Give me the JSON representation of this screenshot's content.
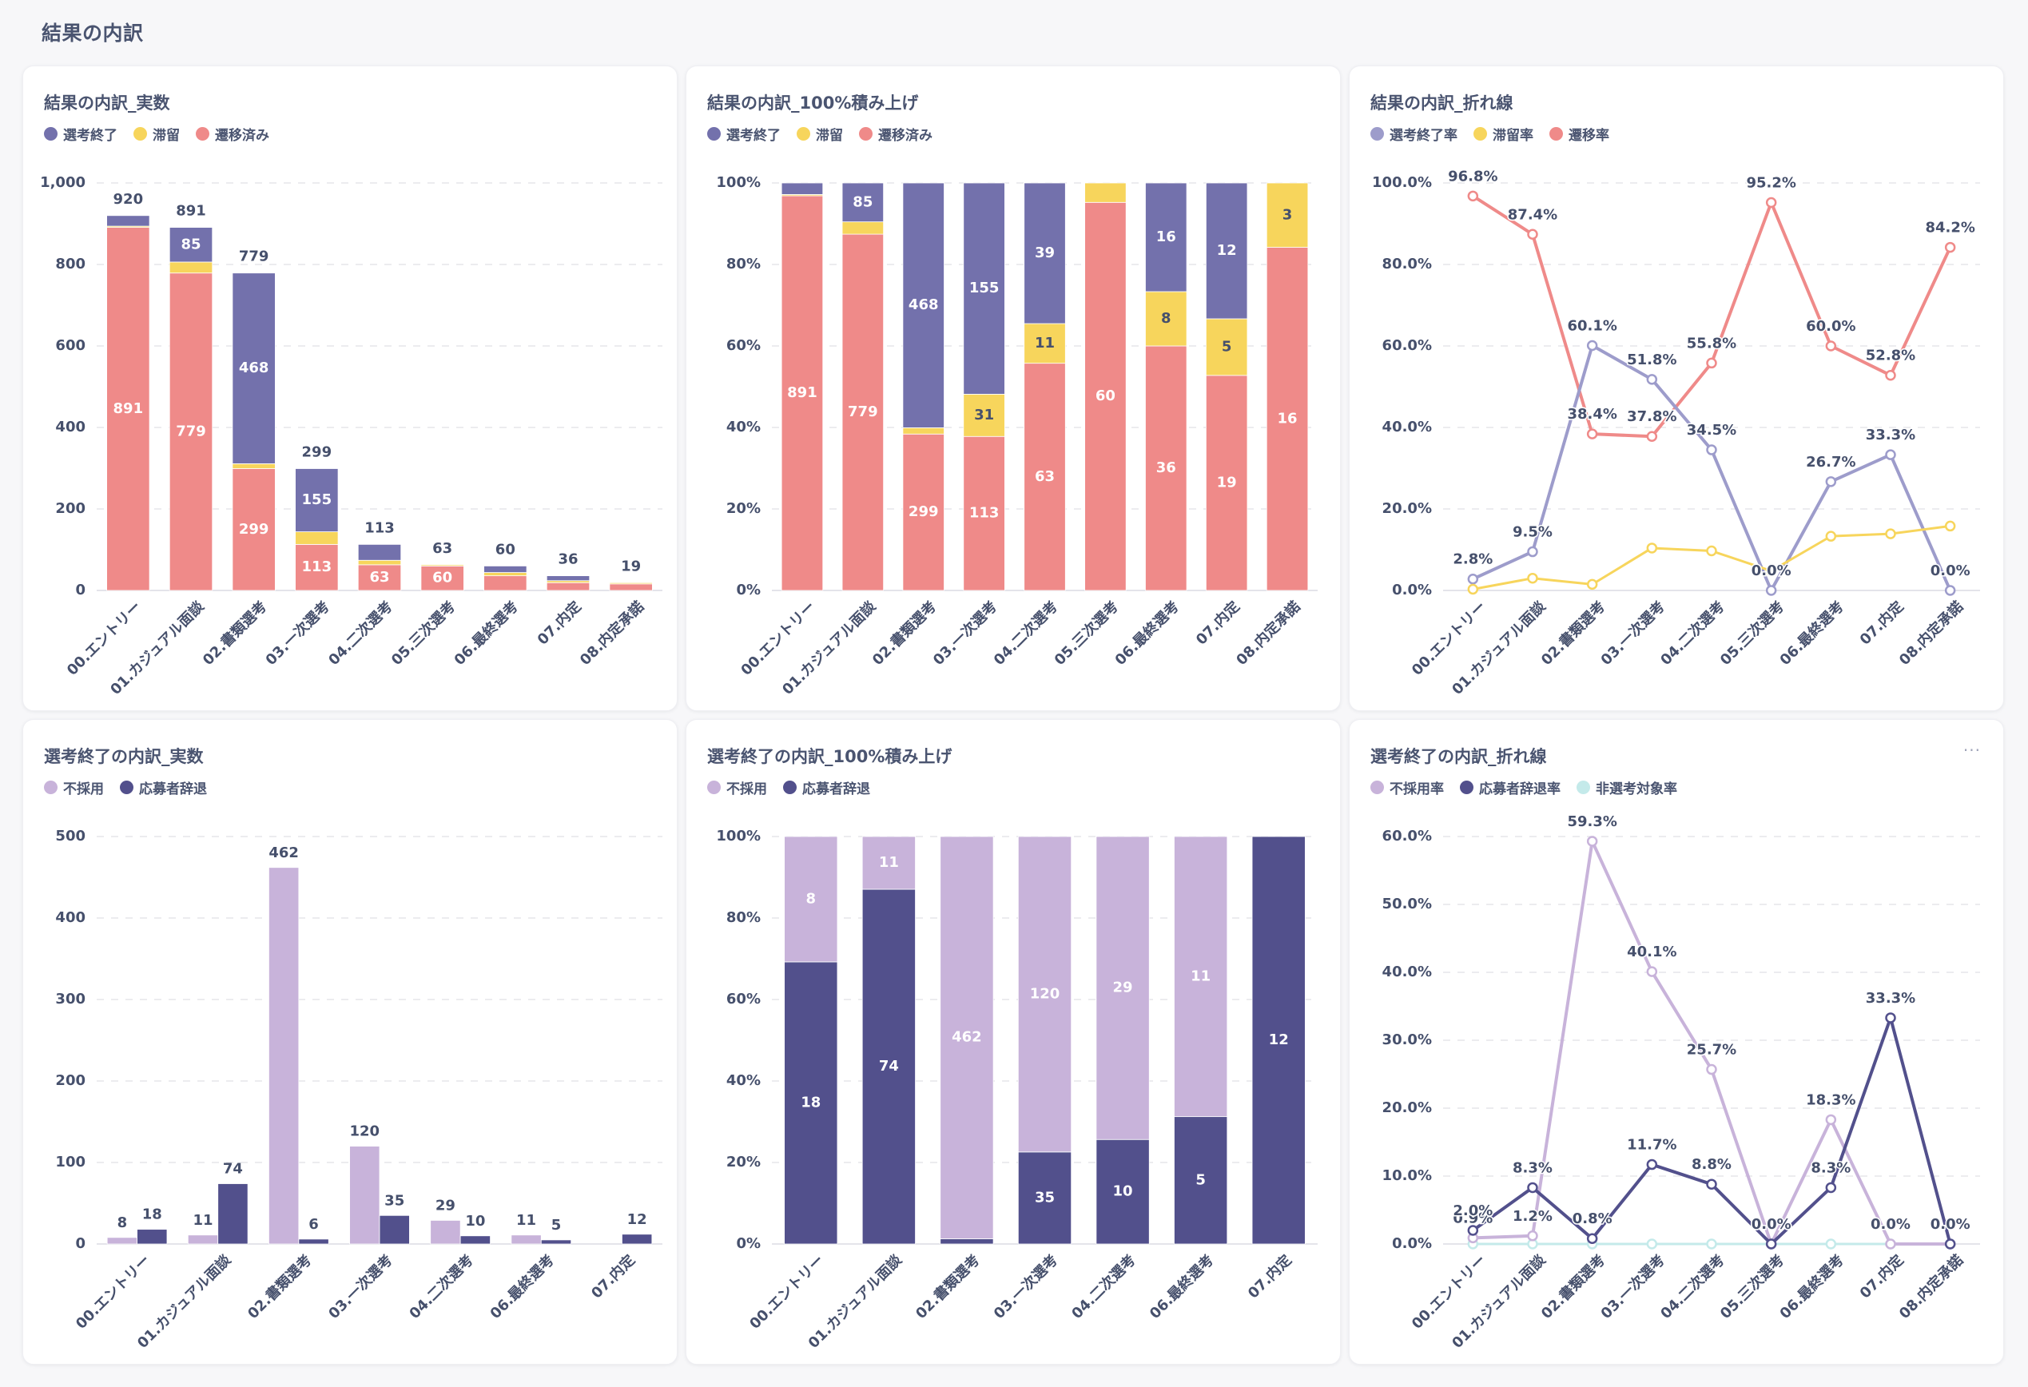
{
  "page": {
    "title": "結果の内訳"
  },
  "colors": {
    "finished": "#7371AC",
    "stagnant": "#F7D55C",
    "transferred": "#EF8A89",
    "finished_rate": "#9D9CCB",
    "rejected": "#C8B3DA",
    "withdrawn": "#52508C",
    "non_target": "#C4EAEA",
    "text": "#46506C",
    "grid": "#E6E6EA"
  },
  "cards": [
    {
      "title": "結果の内訳_実数",
      "legend": [
        {
          "label": "選考終了",
          "color": "#7371AC"
        },
        {
          "label": "滞留",
          "color": "#F7D55C"
        },
        {
          "label": "遷移済み",
          "color": "#EF8A89"
        }
      ]
    },
    {
      "title": "結果の内訳_100%積み上げ",
      "legend": [
        {
          "label": "選考終了",
          "color": "#7371AC"
        },
        {
          "label": "滞留",
          "color": "#F7D55C"
        },
        {
          "label": "遷移済み",
          "color": "#EF8A89"
        }
      ]
    },
    {
      "title": "結果の内訳_折れ線",
      "legend": [
        {
          "label": "選考終了率",
          "color": "#9D9CCB"
        },
        {
          "label": "滞留率",
          "color": "#F7D55C"
        },
        {
          "label": "遷移率",
          "color": "#EF8A89"
        }
      ]
    },
    {
      "title": "選考終了の内訳_実数",
      "legend": [
        {
          "label": "不採用",
          "color": "#C8B3DA"
        },
        {
          "label": "応募者辞退",
          "color": "#52508C"
        }
      ]
    },
    {
      "title": "選考終了の内訳_100%積み上げ",
      "legend": [
        {
          "label": "不採用",
          "color": "#C8B3DA"
        },
        {
          "label": "応募者辞退",
          "color": "#52508C"
        }
      ]
    },
    {
      "title": "選考終了の内訳_折れ線",
      "legend": [
        {
          "label": "不採用率",
          "color": "#C8B3DA"
        },
        {
          "label": "応募者辞退率",
          "color": "#52508C"
        },
        {
          "label": "非選考対象率",
          "color": "#C4EAEA"
        }
      ],
      "more_label": "···"
    }
  ],
  "chart_data": [
    {
      "id": "result-count",
      "type": "bar",
      "stacked": true,
      "title": "結果の内訳_実数",
      "categories": [
        "00.エントリー",
        "01.カジュアル面談",
        "02.書類選考",
        "03.一次選考",
        "04.二次選考",
        "05.三次選考",
        "06.最終選考",
        "07.内定",
        "08.内定承諾"
      ],
      "series": [
        {
          "name": "遷移済み",
          "color": "#EF8A89",
          "values": [
            891,
            779,
            299,
            113,
            63,
            60,
            36,
            19,
            16
          ]
        },
        {
          "name": "滞留",
          "color": "#F7D55C",
          "values": [
            3,
            27,
            12,
            31,
            11,
            3,
            8,
            5,
            3
          ]
        },
        {
          "name": "選考終了",
          "color": "#7371AC",
          "values": [
            26,
            85,
            468,
            155,
            39,
            0,
            16,
            12,
            0
          ]
        }
      ],
      "totals": [
        920,
        891,
        779,
        299,
        113,
        63,
        60,
        36,
        19
      ],
      "segment_labels_shown": {
        "遷移済み": [
          true,
          true,
          true,
          true,
          true,
          true,
          false,
          false,
          false
        ],
        "滞留": [
          false,
          false,
          false,
          false,
          false,
          false,
          false,
          false,
          false
        ],
        "選考終了": [
          false,
          true,
          true,
          true,
          false,
          false,
          false,
          false,
          false
        ]
      },
      "ylim": [
        0,
        1000
      ],
      "yticks": [
        0,
        200,
        400,
        600,
        800,
        1000
      ],
      "ytick_labels": [
        "0",
        "200",
        "400",
        "600",
        "800",
        "1,000"
      ],
      "grid": true,
      "legend": "top-left"
    },
    {
      "id": "result-100",
      "type": "bar",
      "stacked": true,
      "normalized": true,
      "title": "結果の内訳_100%積み上げ",
      "categories": [
        "00.エントリー",
        "01.カジュアル面談",
        "02.書類選考",
        "03.一次選考",
        "04.二次選考",
        "05.三次選考",
        "06.最終選考",
        "07.内定",
        "08.内定承諾"
      ],
      "series": [
        {
          "name": "遷移済み",
          "color": "#EF8A89",
          "values": [
            891,
            779,
            299,
            113,
            63,
            60,
            36,
            19,
            16
          ]
        },
        {
          "name": "滞留",
          "color": "#F7D55C",
          "values": [
            3,
            27,
            12,
            31,
            11,
            3,
            8,
            5,
            3
          ]
        },
        {
          "name": "選考終了",
          "color": "#7371AC",
          "values": [
            26,
            85,
            468,
            155,
            39,
            0,
            16,
            12,
            0
          ]
        }
      ],
      "segment_labels_shown": {
        "遷移済み": [
          true,
          true,
          true,
          true,
          true,
          true,
          true,
          true,
          true
        ],
        "滞留": [
          false,
          false,
          false,
          true,
          true,
          false,
          true,
          true,
          true
        ],
        "選考終了": [
          false,
          true,
          true,
          true,
          true,
          false,
          true,
          true,
          false
        ]
      },
      "ylim": [
        0,
        100
      ],
      "yticks": [
        0,
        20,
        40,
        60,
        80,
        100
      ],
      "ytick_labels": [
        "0%",
        "20%",
        "40%",
        "60%",
        "80%",
        "100%"
      ],
      "grid": true,
      "legend": "top-left"
    },
    {
      "id": "result-line",
      "type": "line",
      "title": "結果の内訳_折れ線",
      "categories": [
        "00.エントリー",
        "01.カジュアル面談",
        "02.書類選考",
        "03.一次選考",
        "04.二次選考",
        "05.三次選考",
        "06.最終選考",
        "07.内定",
        "08.内定承諾"
      ],
      "series": [
        {
          "name": "遷移率",
          "color": "#EF8A89",
          "values": [
            96.8,
            87.4,
            38.4,
            37.8,
            55.8,
            95.2,
            60.0,
            52.8,
            84.2
          ],
          "labels": [
            "96.8%",
            "87.4%",
            "38.4%",
            "37.8%",
            "55.8%",
            "95.2%",
            "60.0%",
            "52.8%",
            "84.2%"
          ]
        },
        {
          "name": "選考終了率",
          "color": "#9D9CCB",
          "values": [
            2.8,
            9.5,
            60.1,
            51.8,
            34.5,
            0.0,
            26.7,
            33.3,
            0.0
          ],
          "labels": [
            "2.8%",
            "9.5%",
            "60.1%",
            "51.8%",
            "34.5%",
            "0.0%",
            "26.7%",
            "33.3%",
            "0.0%"
          ]
        },
        {
          "name": "滞留率",
          "color": "#F7D55C",
          "values": [
            0.3,
            3.0,
            1.5,
            10.4,
            9.7,
            4.8,
            13.3,
            13.9,
            15.8
          ],
          "labels": null
        }
      ],
      "ylim": [
        0,
        100
      ],
      "yticks": [
        0,
        20,
        40,
        60,
        80,
        100
      ],
      "ytick_labels": [
        "0.0%",
        "20.0%",
        "40.0%",
        "60.0%",
        "80.0%",
        "100.0%"
      ],
      "grid": true,
      "legend": "top-left"
    },
    {
      "id": "finish-count",
      "type": "bar",
      "grouped": true,
      "title": "選考終了の内訳_実数",
      "categories": [
        "00.エントリー",
        "01.カジュアル面談",
        "02.書類選考",
        "03.一次選考",
        "04.二次選考",
        "06.最終選考",
        "07.内定"
      ],
      "series": [
        {
          "name": "不採用",
          "color": "#C8B3DA",
          "values": [
            8,
            11,
            462,
            120,
            29,
            11,
            0
          ],
          "labels_shown": [
            true,
            true,
            true,
            true,
            true,
            true,
            false
          ]
        },
        {
          "name": "応募者辞退",
          "color": "#52508C",
          "values": [
            18,
            74,
            6,
            35,
            10,
            5,
            12
          ],
          "labels_shown": [
            true,
            true,
            true,
            true,
            true,
            true,
            true
          ]
        }
      ],
      "ylim": [
        0,
        500
      ],
      "yticks": [
        0,
        100,
        200,
        300,
        400,
        500
      ],
      "ytick_labels": [
        "0",
        "100",
        "200",
        "300",
        "400",
        "500"
      ],
      "grid": true,
      "legend": "top-left"
    },
    {
      "id": "finish-100",
      "type": "bar",
      "stacked": true,
      "normalized": true,
      "title": "選考終了の内訳_100%積み上げ",
      "categories": [
        "00.エントリー",
        "01.カジュアル面談",
        "02.書類選考",
        "03.一次選考",
        "04.二次選考",
        "06.最終選考",
        "07.内定"
      ],
      "series": [
        {
          "name": "応募者辞退",
          "color": "#52508C",
          "values": [
            18,
            74,
            6,
            35,
            10,
            5,
            12
          ],
          "labels_shown": [
            true,
            true,
            false,
            true,
            true,
            true,
            true
          ]
        },
        {
          "name": "不採用",
          "color": "#C8B3DA",
          "values": [
            8,
            11,
            462,
            120,
            29,
            11,
            0
          ],
          "labels_shown": [
            true,
            true,
            true,
            true,
            true,
            true,
            false
          ]
        }
      ],
      "ylim": [
        0,
        100
      ],
      "yticks": [
        0,
        20,
        40,
        60,
        80,
        100
      ],
      "ytick_labels": [
        "0%",
        "20%",
        "40%",
        "60%",
        "80%",
        "100%"
      ],
      "grid": true,
      "legend": "top-left"
    },
    {
      "id": "finish-line",
      "type": "line",
      "title": "選考終了の内訳_折れ線",
      "categories": [
        "00.エントリー",
        "01.カジュアル面談",
        "02.書類選考",
        "03.一次選考",
        "04.二次選考",
        "05.三次選考",
        "06.最終選考",
        "07.内定",
        "08.内定承諾"
      ],
      "series": [
        {
          "name": "非選考対象率",
          "color": "#C4EAEA",
          "values": [
            0,
            0,
            0,
            0,
            0,
            0,
            0,
            0,
            0
          ],
          "labels": null
        },
        {
          "name": "不採用率",
          "color": "#C8B3DA",
          "values": [
            0.9,
            1.2,
            59.3,
            40.1,
            25.7,
            0.0,
            18.3,
            0.0,
            0.0
          ],
          "labels": [
            "0.9%",
            "1.2%",
            "59.3%",
            "40.1%",
            "25.7%",
            "0.0%",
            "18.3%",
            "0.0%",
            "0.0%"
          ]
        },
        {
          "name": "応募者辞退率",
          "color": "#52508C",
          "values": [
            2.0,
            8.3,
            0.8,
            11.7,
            8.8,
            0.0,
            8.3,
            33.3,
            0.0
          ],
          "labels": [
            "2.0%",
            "8.3%",
            "0.8%",
            "11.7%",
            "8.8%",
            "0.0%",
            "8.3%",
            "33.3%",
            "0.0%"
          ]
        }
      ],
      "ylim": [
        0,
        60
      ],
      "yticks": [
        0,
        10,
        20,
        30,
        40,
        50,
        60
      ],
      "ytick_labels": [
        "0.0%",
        "10.0%",
        "20.0%",
        "30.0%",
        "40.0%",
        "50.0%",
        "60.0%"
      ],
      "grid": true,
      "legend": "top-left"
    }
  ]
}
